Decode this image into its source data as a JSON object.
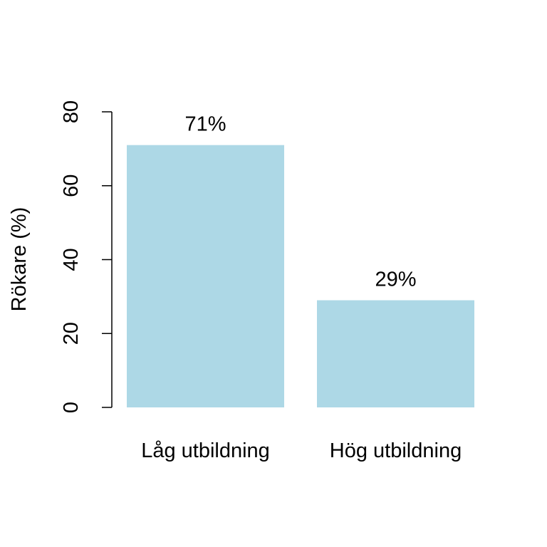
{
  "chart_data": {
    "type": "bar",
    "categories": [
      "Låg utbildning",
      "Hög utbildning"
    ],
    "values": [
      71,
      29
    ],
    "data_labels": [
      "71%",
      "29%"
    ],
    "title": "",
    "xlabel": "",
    "ylabel": "Rökare (%)",
    "ylim": [
      0,
      80
    ],
    "yticks": [
      0,
      20,
      40,
      60,
      80
    ],
    "bar_color": "#add8e6",
    "grid": false,
    "legend": "none"
  }
}
